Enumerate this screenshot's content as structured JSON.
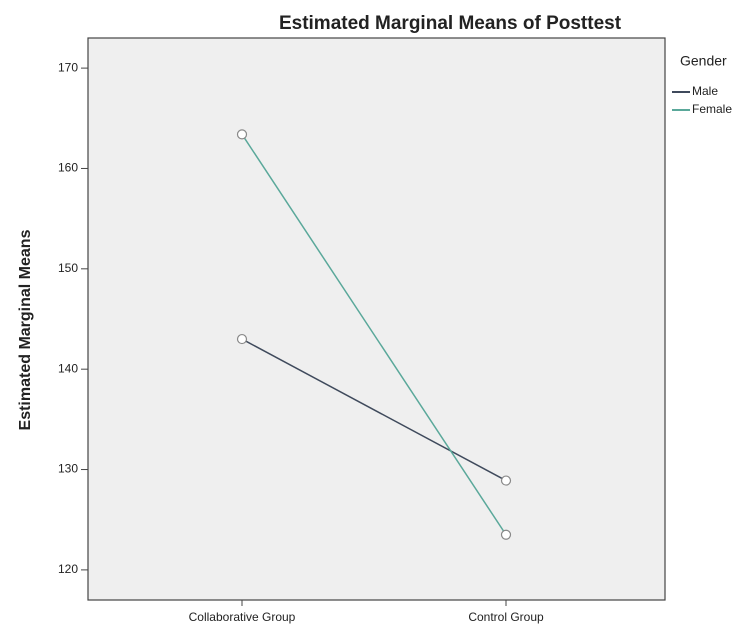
{
  "chart_data": {
    "type": "line",
    "title": "Estimated Marginal Means of Posttest",
    "y_label": "Estimated Marginal Means",
    "legend_title": "Gender",
    "legend_position": "right",
    "categories": [
      "Collaborative Group",
      "Control Group"
    ],
    "series": [
      {
        "name": "Male",
        "color": "#3f4a5c",
        "values": [
          143.0,
          128.9
        ]
      },
      {
        "name": "Female",
        "color": "#5aa89a",
        "values": [
          163.4,
          123.5
        ]
      }
    ],
    "ylim": [
      117,
      173
    ],
    "yticks": [
      120,
      130,
      140,
      150,
      160,
      170
    ]
  }
}
